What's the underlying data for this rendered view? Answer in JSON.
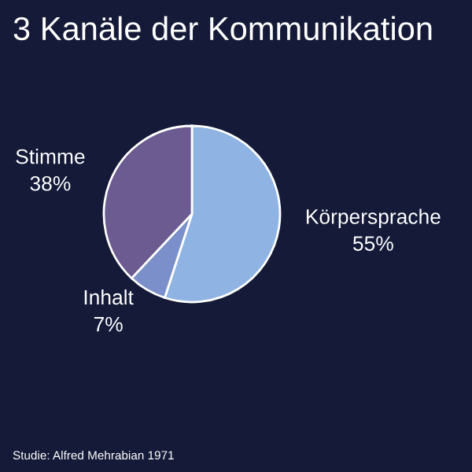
{
  "chart_data": {
    "type": "pie",
    "title": "3 Kanäle der Kommunikation",
    "categories": [
      "Körpersprache",
      "Inhalt",
      "Stimme"
    ],
    "values": [
      55,
      7,
      38
    ],
    "value_labels": [
      "55%",
      "7%",
      "38%"
    ],
    "colors": [
      "#8fb4e3",
      "#7b8fca",
      "#6b5b91"
    ],
    "annotations": [
      "Studie: Alfred Mehrabian 1971"
    ]
  }
}
